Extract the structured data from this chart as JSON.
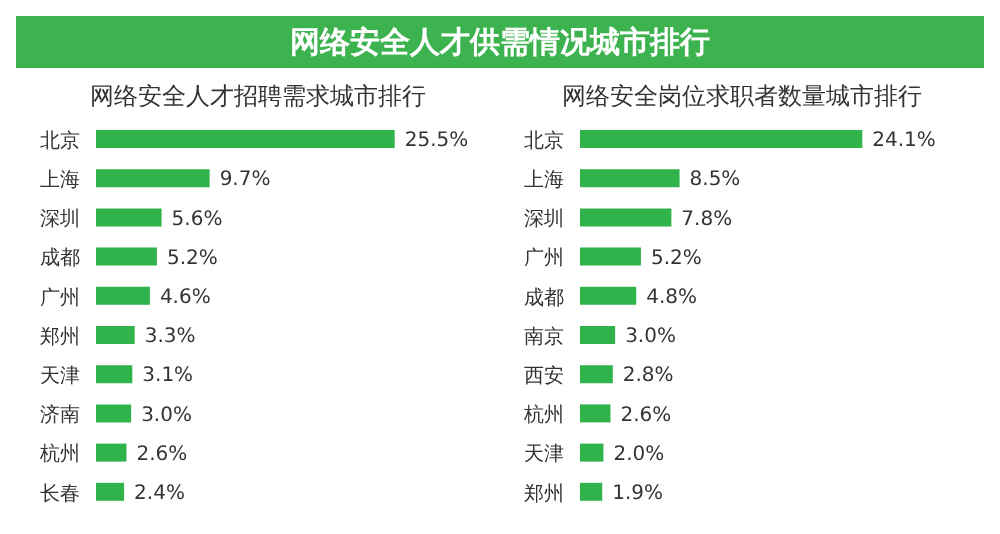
{
  "chart_data": [
    {
      "type": "bar",
      "orientation": "horizontal",
      "title": "网络安全人才供需情况城市排行",
      "subtitle": "网络安全人才招聘需求城市排行",
      "categories": [
        "北京",
        "上海",
        "深圳",
        "成都",
        "广州",
        "郑州",
        "天津",
        "济南",
        "杭州",
        "长春"
      ],
      "values": [
        25.5,
        9.7,
        5.6,
        5.2,
        4.6,
        3.3,
        3.1,
        3.0,
        2.6,
        2.4
      ],
      "value_labels": [
        "25.5%",
        "9.7%",
        "5.6%",
        "5.2%",
        "4.6%",
        "3.3%",
        "3.1%",
        "3.0%",
        "2.6%",
        "2.4%"
      ],
      "color": "#2fb34a",
      "tick_labels": "y",
      "grid": false,
      "legend": false
    },
    {
      "type": "bar",
      "orientation": "horizontal",
      "subtitle": "网络安全岗位求职者数量城市排行",
      "categories": [
        "北京",
        "上海",
        "深圳",
        "广州",
        "成都",
        "南京",
        "西安",
        "杭州",
        "天津",
        "郑州"
      ],
      "values": [
        24.1,
        8.5,
        7.8,
        5.2,
        4.8,
        3.0,
        2.8,
        2.6,
        2.0,
        1.9
      ],
      "value_labels": [
        "24.1%",
        "8.5%",
        "7.8%",
        "5.2%",
        "4.8%",
        "3.0%",
        "2.8%",
        "2.6%",
        "2.0%",
        "1.9%"
      ],
      "color": "#2fb34a",
      "tick_labels": "y",
      "grid": false,
      "legend": false
    }
  ]
}
